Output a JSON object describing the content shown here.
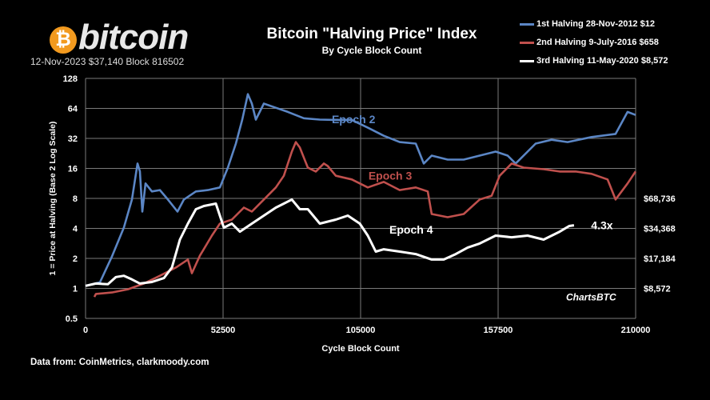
{
  "header": {
    "logo_symbol": "₿",
    "logo_text": "bitcoin",
    "info": "12-Nov-2023 $37,140 Block 816502"
  },
  "footer": "Data from:  CoinMetrics, clarkmoody.com",
  "chart_data": {
    "type": "line",
    "title": "Bitcoin \"Halving Price\" Index",
    "subtitle": "By Cycle Block Count",
    "xlabel": "Cycle Block Count",
    "ylabel": "1 = Price at Halving (Base 2 Log Scale)",
    "xlim": [
      0,
      210000
    ],
    "ylim": [
      0.5,
      128
    ],
    "yscale": "log2",
    "grid": true,
    "legend_position": "top-right",
    "xticks": [
      0,
      52500,
      105000,
      157500,
      210000
    ],
    "xtick_labels": [
      "0",
      "52500",
      "105000",
      "157500",
      "210000"
    ],
    "yticks": [
      0.5,
      1,
      2,
      4,
      8,
      16,
      32,
      64,
      128
    ],
    "ytick_labels": [
      "0.5",
      "1",
      "2",
      "4",
      "8",
      "16",
      "32",
      "64",
      "128"
    ],
    "right_labels": [
      {
        "value": 8,
        "label": "$68,736"
      },
      {
        "value": 4,
        "label": "$34,368"
      },
      {
        "value": 2,
        "label": "$17,184"
      },
      {
        "value": 1,
        "label": "$8,572"
      }
    ],
    "annotations": [
      {
        "text": "Epoch 2",
        "x": 94000,
        "y": 50,
        "color": "#5b86c5"
      },
      {
        "text": "Epoch 3",
        "x": 108000,
        "y": 13.5,
        "color": "#c0504d"
      },
      {
        "text": "Epoch 4",
        "x": 116000,
        "y": 3.9,
        "color": "#ffffff"
      },
      {
        "text": "4.3x",
        "x": 193000,
        "y": 4.3,
        "color": "#ffffff"
      },
      {
        "text": "ChartsBTC",
        "x": 193000,
        "y": 0.63,
        "color": "#ffffff"
      }
    ],
    "series": [
      {
        "name": "1st Halving 28-Nov-2012 $12",
        "color": "#5b86c5",
        "x": [
          0,
          5500,
          10100,
          14650,
          17700,
          19840,
          20750,
          21670,
          22900,
          25330,
          28380,
          31440,
          35100,
          37540,
          42120,
          46700,
          51270,
          54320,
          57370,
          59820,
          61950,
          63480,
          65010,
          68060,
          72640,
          77220,
          83320,
          89420,
          95530,
          101630,
          107740,
          113840,
          119940,
          126050,
          129100,
          132150,
          138250,
          144360,
          150460,
          156560,
          161140,
          164190,
          168770,
          171820,
          177920,
          184020,
          193180,
          202330,
          206910,
          209970
        ],
        "y": [
          1.06,
          1.15,
          2.1,
          4.1,
          7.8,
          17.9,
          14.9,
          5.9,
          11.3,
          9.4,
          9.7,
          7.8,
          5.9,
          7.8,
          9.4,
          9.7,
          10.3,
          16.3,
          28.4,
          49.4,
          89,
          71.5,
          49.4,
          71.5,
          65,
          59,
          51,
          49.4,
          49,
          49,
          41,
          34,
          29.4,
          28.4,
          17.9,
          21.5,
          19.6,
          19.6,
          21.5,
          23.6,
          21.5,
          17.9,
          23.6,
          28.4,
          31,
          29.4,
          33,
          35.5,
          59,
          55
        ]
      },
      {
        "name": "2nd Halving 9-July-2016 $658",
        "color": "#c0504d",
        "x": [
          3360,
          3970,
          10070,
          16180,
          22280,
          28380,
          34490,
          39070,
          40590,
          43640,
          48220,
          51270,
          55850,
          60430,
          63480,
          68060,
          72640,
          75690,
          78740,
          80270,
          81790,
          84840,
          87900,
          90950,
          92470,
          95530,
          101630,
          107740,
          113840,
          119940,
          126050,
          130630,
          132150,
          138250,
          144360,
          150460,
          155040,
          158090,
          162670,
          167250,
          174880,
          180990,
          187090,
          193180,
          199290,
          202330,
          206910,
          209970
        ],
        "y": [
          0.82,
          0.88,
          0.91,
          0.98,
          1.12,
          1.34,
          1.62,
          1.95,
          1.42,
          2.13,
          3.39,
          4.47,
          4.9,
          6.47,
          5.9,
          7.8,
          10.3,
          13.5,
          23.6,
          29.4,
          25.9,
          16.3,
          14.9,
          17.9,
          16.9,
          13.5,
          12.4,
          10.3,
          11.7,
          9.7,
          10.3,
          9.4,
          5.58,
          5.18,
          5.58,
          7.8,
          8.5,
          13.5,
          17.9,
          16.3,
          15.7,
          14.9,
          14.9,
          14.1,
          12.4,
          7.8,
          11.3,
          14.9
        ]
      },
      {
        "name": "3rd Halving 11-May-2020 $8,572",
        "color": "#ffffff",
        "x": [
          0,
          3970,
          8550,
          11600,
          14650,
          17700,
          20750,
          25330,
          29910,
          32960,
          36010,
          39070,
          42120,
          45170,
          49750,
          52800,
          55850,
          58900,
          63480,
          68060,
          72640,
          75690,
          78740,
          81790,
          84840,
          89420,
          95530,
          100110,
          104690,
          107740,
          110790,
          113840,
          119940,
          126050,
          132150,
          136730,
          141310,
          145890,
          150460,
          156560,
          162670,
          168770,
          174880,
          180990,
          184650,
          186480
        ],
        "y": [
          1.06,
          1.12,
          1.1,
          1.3,
          1.34,
          1.23,
          1.12,
          1.16,
          1.27,
          1.62,
          3.09,
          4.47,
          6.23,
          6.71,
          7.1,
          4.07,
          4.47,
          3.71,
          4.47,
          5.38,
          6.47,
          7.1,
          7.8,
          6.23,
          6.23,
          4.47,
          4.9,
          5.38,
          4.47,
          3.39,
          2.34,
          2.47,
          2.34,
          2.21,
          1.95,
          1.95,
          2.21,
          2.57,
          2.82,
          3.39,
          3.26,
          3.39,
          3.09,
          3.71,
          4.23,
          4.3
        ]
      }
    ]
  }
}
